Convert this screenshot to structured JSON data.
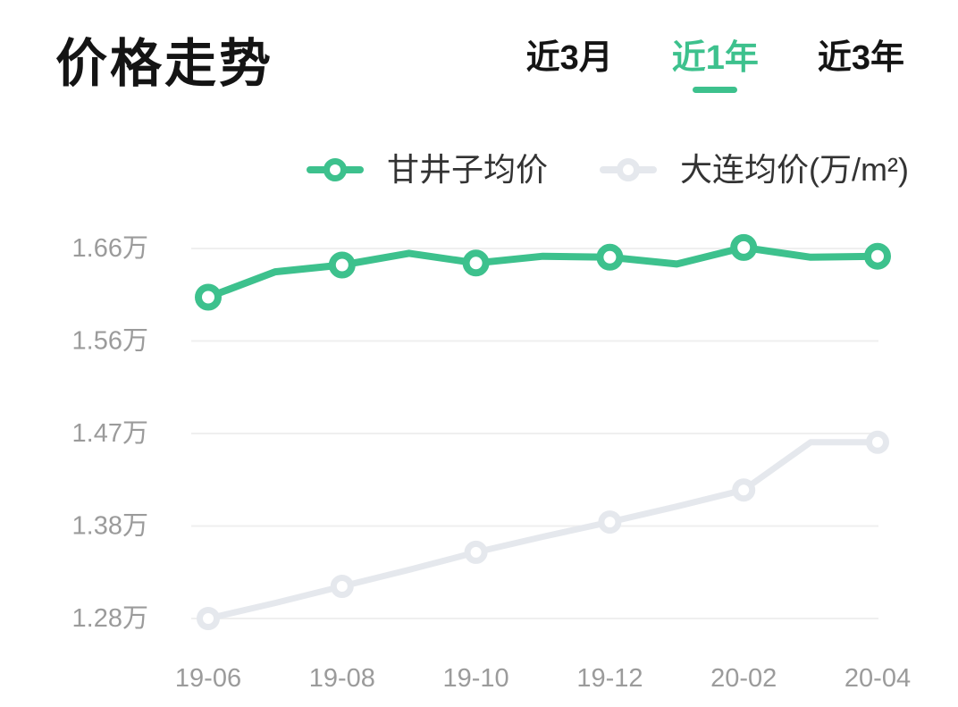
{
  "accent_color": "#3DC18D",
  "header": {
    "title": "价格走势",
    "tabs": [
      {
        "label": "近3月",
        "active": false
      },
      {
        "label": "近1年",
        "active": true
      },
      {
        "label": "近3年",
        "active": false
      }
    ]
  },
  "legend": [
    {
      "label": "甘井子均价",
      "color": "#3DC18D"
    },
    {
      "label": "大连均价(万/m²)",
      "color": "#E5E8ED"
    }
  ],
  "chart_data": {
    "type": "line",
    "x": [
      "19-06",
      "19-07",
      "19-08",
      "19-09",
      "19-10",
      "19-11",
      "19-12",
      "20-01",
      "20-02",
      "20-03",
      "20-04"
    ],
    "x_tick_labels": [
      "19-06",
      "19-08",
      "19-10",
      "19-12",
      "20-02",
      "20-04"
    ],
    "y_ticks": [
      {
        "value": 1.66,
        "label": "1.66万"
      },
      {
        "value": 1.56,
        "label": "1.56万"
      },
      {
        "value": 1.47,
        "label": "1.47万"
      },
      {
        "value": 1.38,
        "label": "1.38万"
      },
      {
        "value": 1.28,
        "label": "1.28万"
      }
    ],
    "ylim": [
      1.28,
      1.66
    ],
    "unit": "万/m²",
    "grid": true,
    "legend_position": "top",
    "marker_every": 2,
    "series": [
      {
        "key": "ganjingzi",
        "name": "甘井子均价",
        "color": "#3DC18D",
        "line_width": 8,
        "marker_radius": 11,
        "marker_stroke": 8,
        "values": [
          1.61,
          1.636,
          1.643,
          1.655,
          1.645,
          1.652,
          1.651,
          1.644,
          1.661,
          1.651,
          1.652
        ]
      },
      {
        "key": "dalian",
        "name": "大连均价(万/m²)",
        "color": "#E5E8ED",
        "line_width": 7,
        "marker_radius": 9.5,
        "marker_stroke": 7,
        "values": [
          1.28,
          1.296,
          1.313,
          1.33,
          1.348,
          1.364,
          1.379,
          1.395,
          1.412,
          1.461,
          1.461
        ]
      }
    ],
    "axis_text_color": "#9B9B9B",
    "grid_color": "#EFEFEF",
    "title": "价格走势"
  }
}
